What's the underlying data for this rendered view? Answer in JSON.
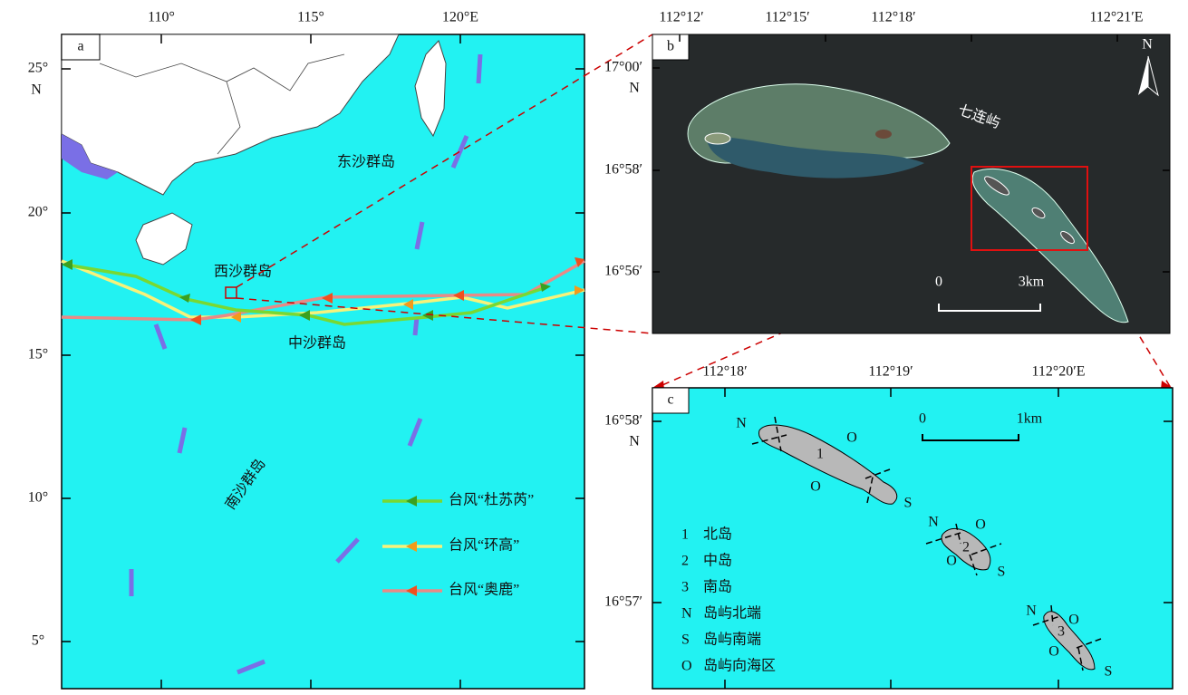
{
  "panel_a": {
    "label": "a",
    "lon_ticks": [
      "110°",
      "115°",
      "120°E"
    ],
    "lat_ticks": [
      "25°",
      "20°",
      "15°",
      "10°",
      "5°"
    ],
    "lat_unit": "N",
    "places": [
      "东沙群岛",
      "西沙群岛",
      "中沙群岛",
      "南沙群岛"
    ],
    "legend": [
      "台风“杜苏芮”",
      "台风“环高”",
      "台风“奥鹿”"
    ]
  },
  "panel_b": {
    "label": "b",
    "lon_ticks": [
      "112°12′",
      "112°15′",
      "112°18′",
      "112°21′E"
    ],
    "lat_ticks": [
      "17°00′",
      "16°58′",
      "16°56′"
    ],
    "lat_unit": "N",
    "place": "七连屿",
    "scale": [
      "0",
      "3km"
    ],
    "north": "N"
  },
  "panel_c": {
    "label": "c",
    "lon_ticks": [
      "112°18′",
      "112°19′",
      "112°20′E"
    ],
    "lat_ticks": [
      "16°58′",
      "16°57′"
    ],
    "lat_unit": "N",
    "scale": [
      "0",
      "1km"
    ],
    "key": [
      {
        "symbol": "1",
        "text": "北岛"
      },
      {
        "symbol": "2",
        "text": "中岛"
      },
      {
        "symbol": "3",
        "text": "南岛"
      },
      {
        "symbol": "N",
        "text": "岛屿北端"
      },
      {
        "symbol": "S",
        "text": "岛屿南端"
      },
      {
        "symbol": "O",
        "text": "岛屿向海区"
      }
    ]
  }
}
